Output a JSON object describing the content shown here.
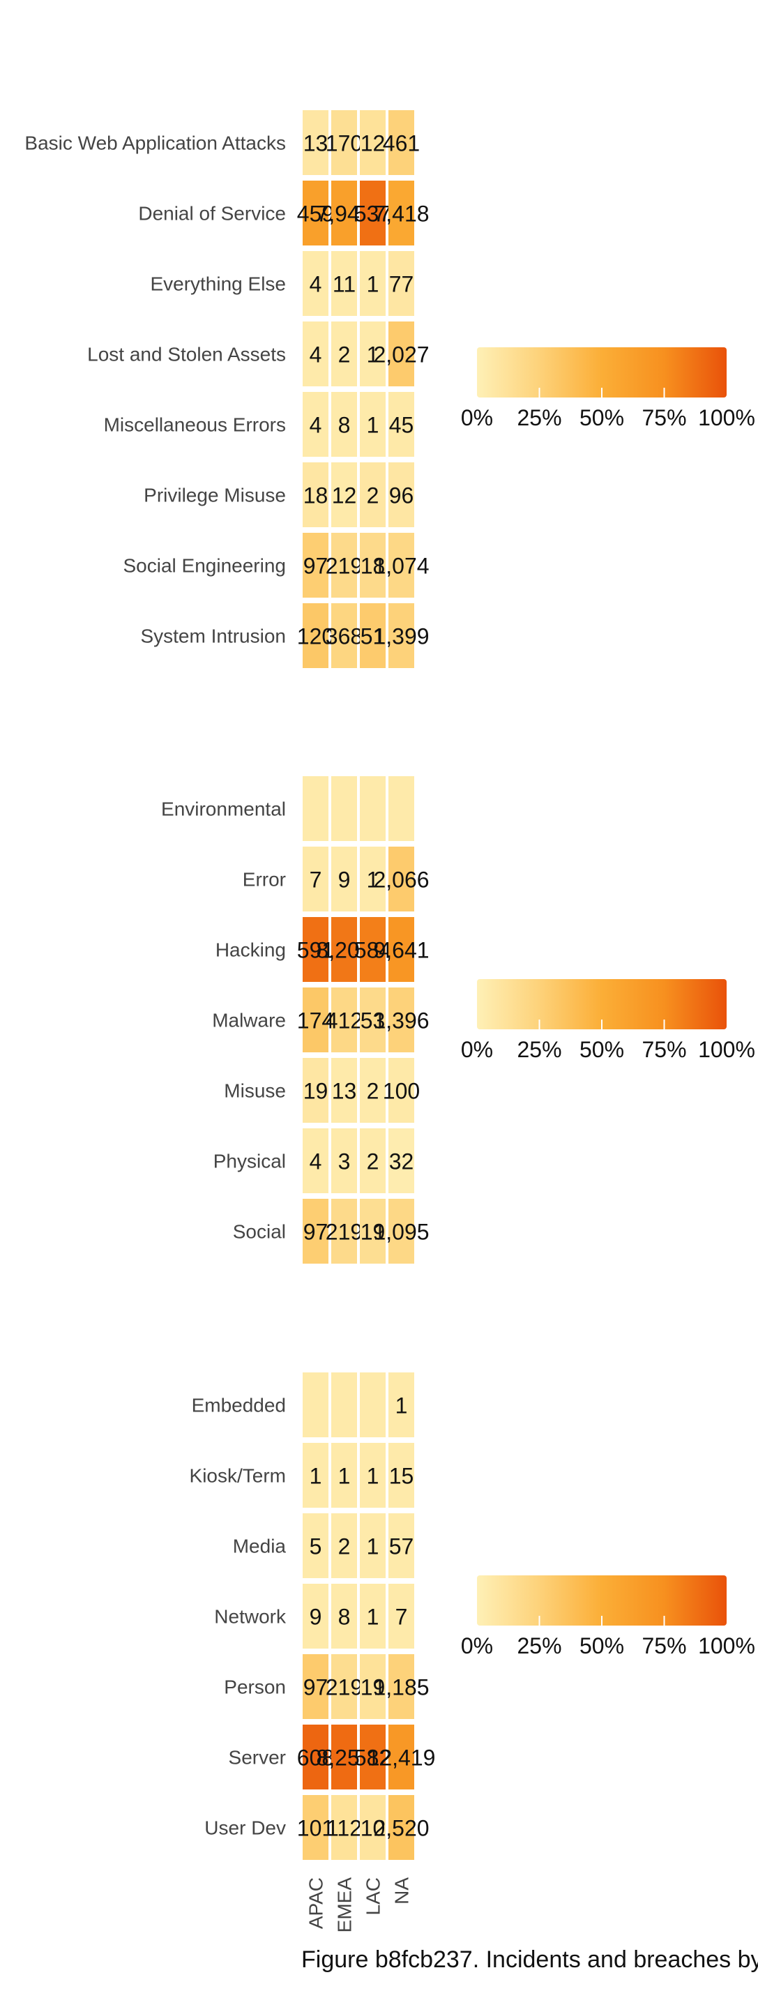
{
  "figure": {
    "caption": "Figure b8fcb237. Incidents and breaches by"
  },
  "colors": {
    "scale": [
      "#fef0b6",
      "#fdd27a",
      "#fbae37",
      "#f7901f",
      "#e9520a"
    ],
    "label_text": "#444444",
    "value_text": "#111111"
  },
  "regions": [
    "APAC",
    "EMEA",
    "LAC",
    "NA"
  ],
  "chart_data": [
    {
      "type": "heatmap",
      "title": "",
      "xlabel": "",
      "ylabel": "",
      "x": [
        "APAC",
        "EMEA",
        "LAC",
        "NA"
      ],
      "y": [
        "Basic Web Application Attacks",
        "Denial of Service",
        "Everything Else",
        "Lost and Stolen Assets",
        "Miscellaneous Errors",
        "Privilege Misuse",
        "Social Engineering",
        "System Intrusion"
      ],
      "values": [
        [
          13,
          170,
          12,
          461
        ],
        [
          459,
          7945,
          537,
          7418
        ],
        [
          4,
          11,
          1,
          77
        ],
        [
          4,
          2,
          1,
          2027
        ],
        [
          4,
          8,
          1,
          45
        ],
        [
          18,
          12,
          2,
          96
        ],
        [
          97,
          219,
          18,
          1074
        ],
        [
          120,
          368,
          51,
          1399
        ]
      ],
      "labels": [
        [
          "13",
          "170",
          "12",
          "461"
        ],
        [
          "459",
          "7,945",
          "537",
          "7,418"
        ],
        [
          "4",
          "11",
          "1",
          "77"
        ],
        [
          "4",
          "2",
          "1",
          "2,027"
        ],
        [
          "4",
          "8",
          "1",
          "45"
        ],
        [
          "18",
          "12",
          "2",
          "96"
        ],
        [
          "97",
          "219",
          "18",
          "1,074"
        ],
        [
          "120",
          "368",
          "51",
          "1,399"
        ]
      ],
      "shade": [
        [
          0.08,
          0.14,
          0.12,
          0.25
        ],
        [
          0.62,
          0.62,
          0.88,
          0.55
        ],
        [
          0.05,
          0.05,
          0.05,
          0.08
        ],
        [
          0.05,
          0.05,
          0.05,
          0.3
        ],
        [
          0.05,
          0.05,
          0.05,
          0.06
        ],
        [
          0.08,
          0.05,
          0.08,
          0.08
        ],
        [
          0.28,
          0.18,
          0.18,
          0.2
        ],
        [
          0.32,
          0.22,
          0.3,
          0.25
        ]
      ],
      "legend": {
        "ticks": [
          "0%",
          "25%",
          "50%",
          "75%",
          "100%"
        ],
        "position": "right"
      }
    },
    {
      "type": "heatmap",
      "title": "",
      "xlabel": "",
      "ylabel": "",
      "x": [
        "APAC",
        "EMEA",
        "LAC",
        "NA"
      ],
      "y": [
        "Environmental",
        "Error",
        "Hacking",
        "Malware",
        "Misuse",
        "Physical",
        "Social"
      ],
      "values": [
        [
          null,
          null,
          null,
          null
        ],
        [
          7,
          9,
          1,
          2066
        ],
        [
          591,
          8204,
          584,
          9641
        ],
        [
          174,
          412,
          53,
          1396
        ],
        [
          19,
          13,
          2,
          100
        ],
        [
          4,
          3,
          2,
          32
        ],
        [
          97,
          219,
          19,
          1095
        ]
      ],
      "labels": [
        [
          "",
          "",
          "",
          ""
        ],
        [
          "7",
          "9",
          "1",
          "2,066"
        ],
        [
          "591",
          "8,204",
          "584",
          "9,641"
        ],
        [
          "174",
          "412",
          "53",
          "1,396"
        ],
        [
          "19",
          "13",
          "2",
          "100"
        ],
        [
          "4",
          "3",
          "2",
          "32"
        ],
        [
          "97",
          "219",
          "19",
          "1,095"
        ]
      ],
      "shade": [
        [
          0.05,
          0.05,
          0.05,
          0.05
        ],
        [
          0.06,
          0.05,
          0.05,
          0.3
        ],
        [
          0.88,
          0.85,
          0.82,
          0.7
        ],
        [
          0.32,
          0.2,
          0.18,
          0.25
        ],
        [
          0.08,
          0.05,
          0.05,
          0.06
        ],
        [
          0.05,
          0.05,
          0.05,
          0.03
        ],
        [
          0.28,
          0.18,
          0.15,
          0.2
        ]
      ],
      "legend": {
        "ticks": [
          "0%",
          "25%",
          "50%",
          "75%",
          "100%"
        ],
        "position": "right"
      }
    },
    {
      "type": "heatmap",
      "title": "",
      "xlabel": "",
      "ylabel": "",
      "x": [
        "APAC",
        "EMEA",
        "LAC",
        "NA"
      ],
      "y": [
        "Embedded",
        "Kiosk/Term",
        "Media",
        "Network",
        "Person",
        "Server",
        "User Dev"
      ],
      "values": [
        [
          null,
          null,
          null,
          1
        ],
        [
          1,
          1,
          1,
          15
        ],
        [
          5,
          2,
          1,
          57
        ],
        [
          9,
          8,
          1,
          7
        ],
        [
          97,
          219,
          19,
          1185
        ],
        [
          608,
          8253,
          582,
          12419
        ],
        [
          101,
          112,
          10,
          2520
        ]
      ],
      "labels": [
        [
          "",
          "",
          "",
          "1"
        ],
        [
          "1",
          "1",
          "1",
          "15"
        ],
        [
          "5",
          "2",
          "1",
          "57"
        ],
        [
          "9",
          "8",
          "1",
          "7"
        ],
        [
          "97",
          "219",
          "19",
          "1,185"
        ],
        [
          "608",
          "8,253",
          "582",
          "12,419"
        ],
        [
          "101",
          "112",
          "10",
          "2,520"
        ]
      ],
      "shade": [
        [
          0.05,
          0.05,
          0.05,
          0.05
        ],
        [
          0.05,
          0.05,
          0.05,
          0.05
        ],
        [
          0.05,
          0.05,
          0.05,
          0.05
        ],
        [
          0.05,
          0.05,
          0.05,
          0.05
        ],
        [
          0.3,
          0.16,
          0.12,
          0.25
        ],
        [
          0.92,
          0.9,
          0.88,
          0.68
        ],
        [
          0.28,
          0.12,
          0.1,
          0.35
        ]
      ],
      "legend": {
        "ticks": [
          "0%",
          "25%",
          "50%",
          "75%",
          "100%"
        ],
        "position": "right"
      }
    }
  ]
}
